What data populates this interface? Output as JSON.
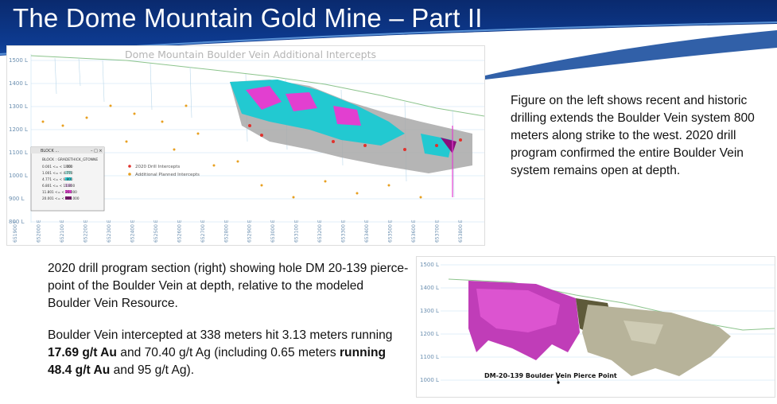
{
  "slide": {
    "title": "The Dome Mountain Gold Mine – Part II"
  },
  "left_figure": {
    "title": "Dome Mountain Boulder Vein Additional Intercepts",
    "elevation_labels": [
      "1500 L",
      "1400 L",
      "1300 L",
      "1200 L",
      "1100 L",
      "1000 L",
      "900 L",
      "800 L"
    ],
    "easting_labels": [
      "651900 E",
      "652000 E",
      "652100 E",
      "652200 E",
      "652300 E",
      "652400 E",
      "652500 E",
      "652600 E",
      "652700 E",
      "652800 E",
      "652900 E",
      "653000 E",
      "653100 E",
      "653200 E",
      "653300 E",
      "653400 E",
      "653500 E",
      "653600 E",
      "653700 E",
      "653800 E"
    ],
    "legend_dots": [
      {
        "label": "2020 Drill Intercepts",
        "color": "#e0322d"
      },
      {
        "label": "Additional Planned Intercepts",
        "color": "#e8a020"
      }
    ],
    "block_legend": {
      "window_title": "BLOCK ...",
      "heading": "BLOCK : GRADETHICK_GTONNE",
      "rows": [
        {
          "range": "0.001 <= < 1.000",
          "color": "#c8c8c8"
        },
        {
          "range": "1.001 <= < 4.770",
          "color": "#9fd6cf"
        },
        {
          "range": "4.771 <= < 6.800",
          "color": "#22c9d1"
        },
        {
          "range": "6.801 <= < 11.800",
          "color": "#d2b3d8"
        },
        {
          "range": "11.801 <= < 20.000",
          "color": "#e23fd0"
        },
        {
          "range": "20.001 <= < 999.000",
          "color": "#8a0e7c"
        }
      ]
    }
  },
  "right_text": "Figure on the left shows recent and historic drilling extends the Boulder Vein system 800 meters along strike to the west. 2020 drill program confirmed the entire Boulder Vein system remains open at depth.",
  "bottom_text": {
    "paragraph1": "2020 drill program section (right) showing hole DM 20-139 pierce-point of the Boulder Vein at depth, relative to the modeled Boulder Vein Resource.",
    "p2_a": "Boulder Vein intercepted at 338 meters hit 3.13 meters running ",
    "p2_b": "17.69 g/t Au",
    "p2_c": " and 70.40 g/t Ag (including 0.65 meters ",
    "p2_d": "running 48.4 g/t Au",
    "p2_e": " and 95 g/t Ag)."
  },
  "right_figure": {
    "elevation_labels": [
      "1500 L",
      "1400 L",
      "1300 L",
      "1200 L",
      "1100 L",
      "1000 L"
    ],
    "pierce_label": "DM-20-139 Boulder Vein Pierce Point"
  },
  "colors": {
    "header_dark": "#0a2a6e",
    "header_light": "#1d5bb6",
    "vein_cyan": "#22c9d1",
    "vein_magenta": "#e23fd0",
    "vein_grey": "#a8a8a8",
    "resource_khaki": "#b7b39a",
    "topo_green": "#8cc48c"
  }
}
